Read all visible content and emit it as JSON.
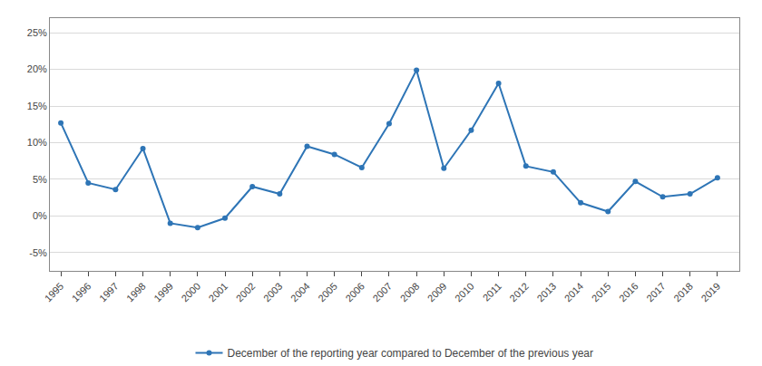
{
  "chart_data": {
    "type": "line",
    "x": [
      1995,
      1996,
      1997,
      1998,
      1999,
      2000,
      2001,
      2002,
      2003,
      2004,
      2005,
      2006,
      2007,
      2008,
      2009,
      2010,
      2011,
      2012,
      2013,
      2014,
      2015,
      2016,
      2017,
      2018,
      2019
    ],
    "series": [
      {
        "name": "December of the reporting year compared to December of the previous year",
        "color": "#2e75b6",
        "marker": "circle",
        "line_style": "solid",
        "values": [
          12.7,
          4.5,
          3.6,
          9.2,
          -1.0,
          -1.6,
          -0.3,
          4.0,
          3.0,
          9.5,
          8.4,
          6.6,
          12.6,
          19.9,
          6.5,
          11.7,
          18.1,
          6.8,
          6.0,
          1.8,
          0.6,
          4.7,
          2.6,
          3.0,
          5.2
        ]
      }
    ],
    "xlim": [
      1994.6,
      2019.8
    ],
    "xticks": [
      1995,
      1996,
      1997,
      1998,
      1999,
      2000,
      2001,
      2002,
      2003,
      2004,
      2005,
      2006,
      2007,
      2008,
      2009,
      2010,
      2011,
      2012,
      2013,
      2014,
      2015,
      2016,
      2017,
      2018,
      2019
    ],
    "ylim": [
      -7.5,
      27
    ],
    "yticks": [
      {
        "value": -5,
        "label": "-5%"
      },
      {
        "value": 0,
        "label": "0%"
      },
      {
        "value": 5,
        "label": "5%"
      },
      {
        "value": 10,
        "label": "10%"
      },
      {
        "value": 15,
        "label": "15%"
      },
      {
        "value": 20,
        "label": "20%"
      },
      {
        "value": 25,
        "label": "25%"
      }
    ],
    "grid": true,
    "legend": "bottom"
  }
}
